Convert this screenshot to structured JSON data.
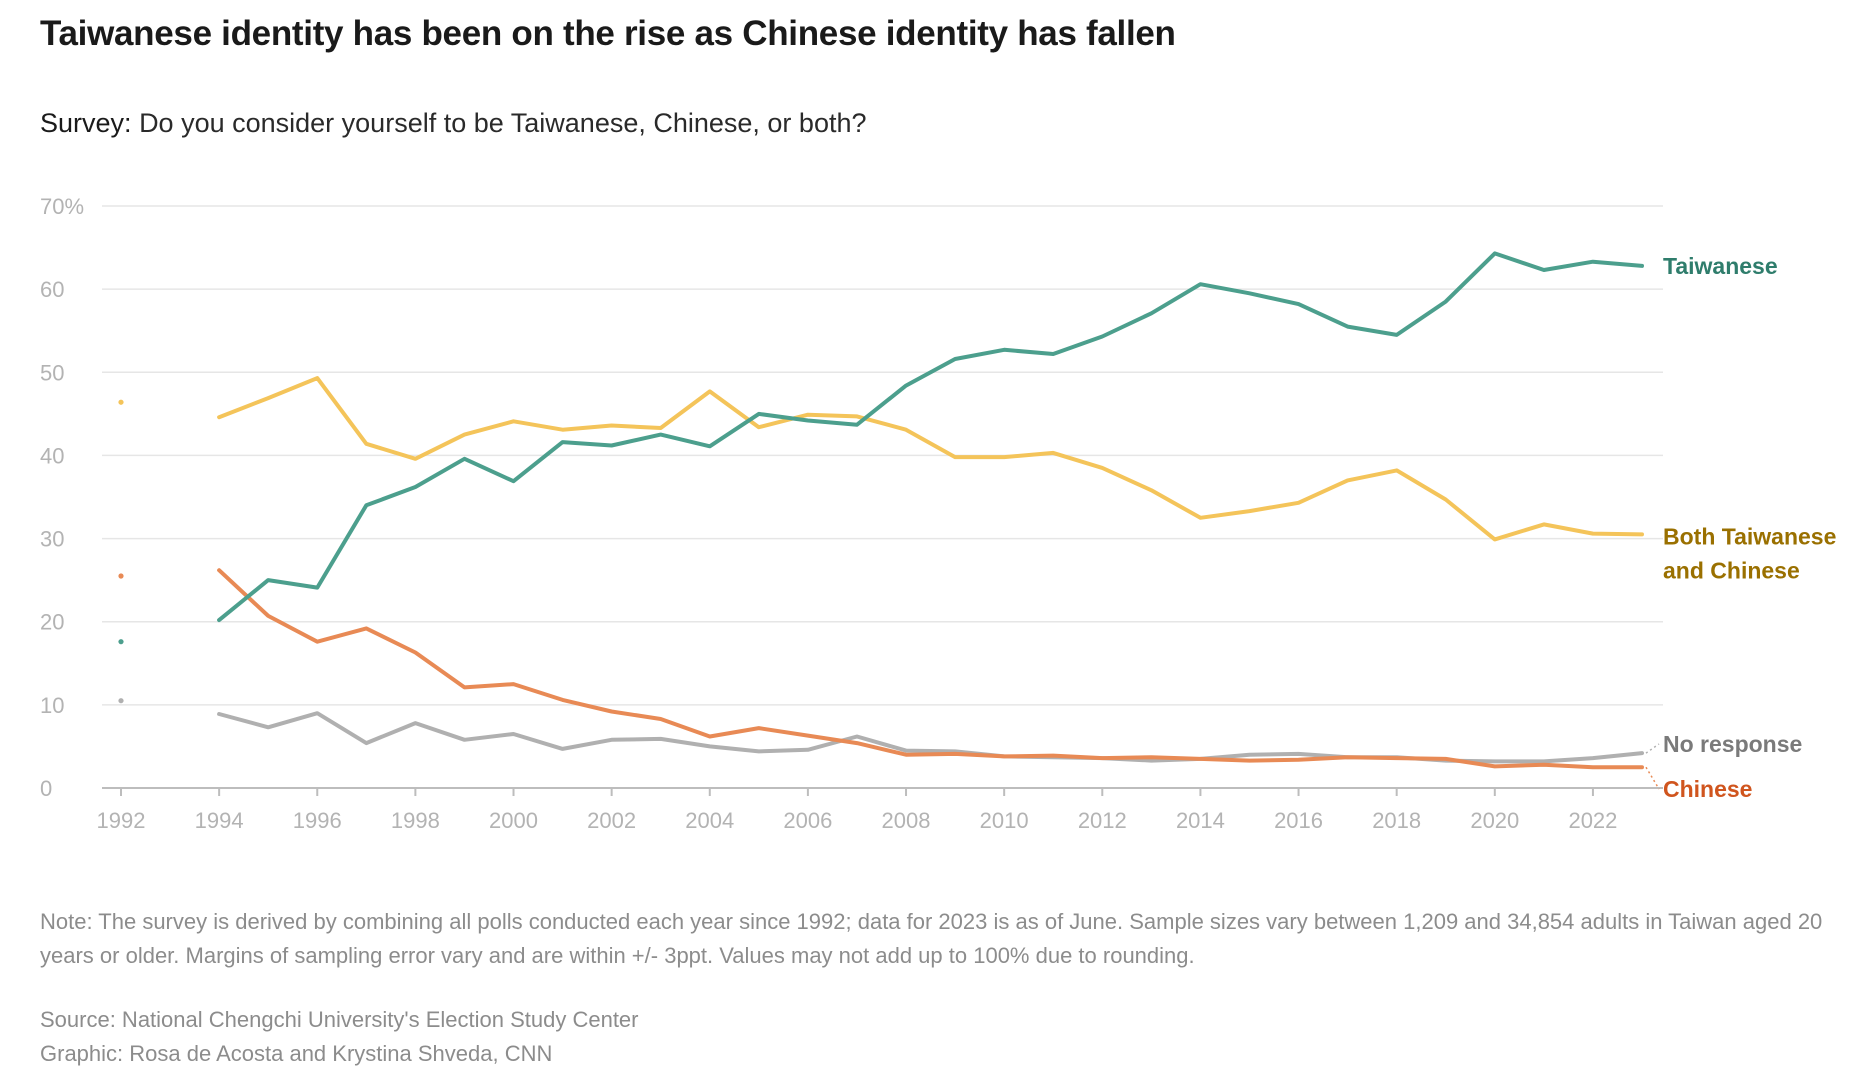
{
  "header": {
    "title": "Taiwanese identity has been on the rise as Chinese identity has fallen",
    "subtitle_lead": "Survey:",
    "subtitle_question": "Do you consider yourself to be Taiwanese, Chinese, or both?"
  },
  "chart_data": {
    "type": "line",
    "title": "Taiwanese identity has been on the rise as Chinese identity has fallen",
    "xlabel": "",
    "ylabel": "",
    "ylim": [
      0,
      70
    ],
    "xlim": [
      1992,
      2023
    ],
    "yticks": [
      0,
      10,
      20,
      30,
      40,
      50,
      60,
      70
    ],
    "ytick_labels": [
      "0",
      "10",
      "20",
      "30",
      "40",
      "50",
      "60",
      "70%"
    ],
    "xticks": [
      1992,
      1994,
      1996,
      1998,
      2000,
      2002,
      2004,
      2006,
      2008,
      2010,
      2012,
      2014,
      2016,
      2018,
      2020,
      2022
    ],
    "grid": true,
    "x": [
      1994,
      1995,
      1996,
      1997,
      1998,
      1999,
      2000,
      2001,
      2002,
      2003,
      2004,
      2005,
      2006,
      2007,
      2008,
      2009,
      2010,
      2011,
      2012,
      2013,
      2014,
      2015,
      2016,
      2017,
      2018,
      2019,
      2020,
      2021,
      2022,
      2023
    ],
    "series": [
      {
        "name": "Taiwanese",
        "color": "#4c9f8d",
        "label_color": "#2f7d6c",
        "label_lines": [
          "Taiwanese"
        ],
        "start_1992": 17.6,
        "values": [
          20.2,
          25.0,
          24.1,
          34.0,
          36.2,
          39.6,
          36.9,
          41.6,
          41.2,
          42.5,
          41.1,
          45.0,
          44.2,
          43.7,
          48.4,
          51.6,
          52.7,
          52.2,
          54.3,
          57.1,
          60.6,
          59.5,
          58.2,
          55.5,
          54.5,
          58.5,
          64.3,
          62.3,
          63.3,
          62.8
        ]
      },
      {
        "name": "Both Taiwanese and Chinese",
        "color": "#f4c45a",
        "label_color": "#9a7000",
        "label_lines": [
          "Both Taiwanese",
          "and Chinese"
        ],
        "start_1992": 46.4,
        "values": [
          44.6,
          46.9,
          49.3,
          41.4,
          39.6,
          42.5,
          44.1,
          43.1,
          43.6,
          43.3,
          47.7,
          43.4,
          44.9,
          44.7,
          43.1,
          39.8,
          39.8,
          40.3,
          38.5,
          35.8,
          32.5,
          33.3,
          34.3,
          37.0,
          38.2,
          34.7,
          29.9,
          31.7,
          30.6,
          30.5
        ]
      },
      {
        "name": "Chinese",
        "color": "#e88a55",
        "label_color": "#d0551e",
        "label_lines": [
          "Chinese"
        ],
        "start_1992": 25.5,
        "values": [
          26.2,
          20.7,
          17.6,
          19.2,
          16.3,
          12.1,
          12.5,
          10.6,
          9.2,
          8.3,
          6.2,
          7.2,
          6.3,
          5.4,
          4.0,
          4.1,
          3.8,
          3.9,
          3.6,
          3.7,
          3.5,
          3.3,
          3.4,
          3.7,
          3.6,
          3.5,
          2.6,
          2.8,
          2.5,
          2.5
        ]
      },
      {
        "name": "No response",
        "color": "#b0b0b0",
        "label_color": "#7a7a7a",
        "label_lines": [
          "No response"
        ],
        "start_1992": 10.5,
        "values": [
          8.9,
          7.3,
          9.0,
          5.4,
          7.8,
          5.8,
          6.5,
          4.7,
          5.8,
          5.9,
          5.0,
          4.4,
          4.6,
          6.2,
          4.5,
          4.4,
          3.8,
          3.7,
          3.6,
          3.3,
          3.5,
          4.0,
          4.1,
          3.7,
          3.7,
          3.3,
          3.2,
          3.2,
          3.6,
          4.2
        ]
      }
    ]
  },
  "footer": {
    "note": "Note: The survey is derived by combining all polls conducted each year since 1992; data for 2023 is as of June. Sample sizes vary between 1,209 and 34,854 adults in Taiwan aged 20 years or older. Margins of sampling error vary and are within +/- 3ppt. Values may not add up to 100% due to rounding.",
    "source": "Source: National Chengchi University's Election Study Center",
    "credit": "Graphic: Rosa de Acosta and Krystina Shveda, CNN"
  }
}
